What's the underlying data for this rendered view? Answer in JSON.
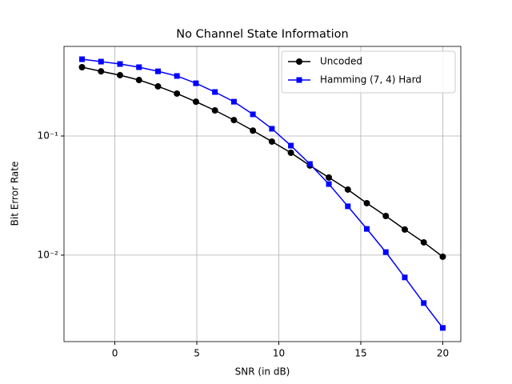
{
  "chart_data": {
    "type": "line",
    "title": "No Channel State Information",
    "x_label": "SNR (in dB)",
    "y_label": "Bit Error Rate",
    "x": [
      -2,
      -0.842,
      0.316,
      1.474,
      2.632,
      3.789,
      4.947,
      6.105,
      7.263,
      8.421,
      9.579,
      10.737,
      11.895,
      13.053,
      14.211,
      15.368,
      16.526,
      17.684,
      18.842,
      20
    ],
    "series": [
      {
        "name": "Uncoded",
        "color": "#000000",
        "marker": "circle",
        "values": [
          0.378,
          0.349,
          0.324,
          0.295,
          0.261,
          0.227,
          0.194,
          0.164,
          0.136,
          0.111,
          0.0898,
          0.0723,
          0.0565,
          0.0448,
          0.0355,
          0.0273,
          0.0213,
          0.0164,
          0.0128,
          0.0097
        ]
      },
      {
        "name": "Hamming (7, 4) Hard",
        "color": "#0000ff",
        "marker": "square",
        "values": [
          0.441,
          0.421,
          0.402,
          0.378,
          0.349,
          0.319,
          0.277,
          0.234,
          0.194,
          0.152,
          0.115,
          0.083,
          0.0582,
          0.0395,
          0.0257,
          0.0166,
          0.0106,
          0.0065,
          0.00396,
          0.00245
        ]
      }
    ],
    "xlim": [
      -3.1,
      21.1
    ],
    "xticks": [
      0,
      5,
      10,
      15,
      20
    ],
    "ylim": [
      0.00188,
      0.565
    ],
    "ylog": true,
    "yticks": [
      {
        "value": 0.1,
        "label": "10⁻¹"
      },
      {
        "value": 0.01,
        "label": "10⁻²"
      }
    ],
    "grid": true,
    "legend_position": "upper-right"
  }
}
